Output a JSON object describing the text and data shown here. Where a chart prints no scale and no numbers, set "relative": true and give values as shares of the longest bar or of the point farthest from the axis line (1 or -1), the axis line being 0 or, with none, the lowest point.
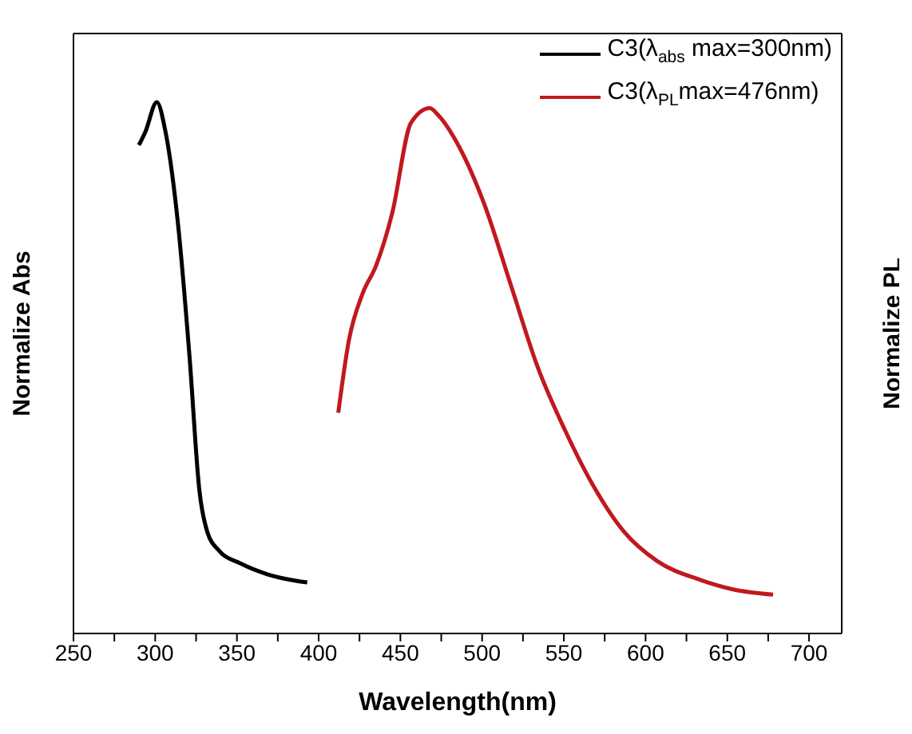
{
  "chart_data": {
    "type": "line",
    "xlabel": "Wavelength(nm)",
    "ylabel": "Normalize Abs",
    "y2label": "Normalize PL",
    "relative": true,
    "legend": "top right",
    "grid": false,
    "marker": "none",
    "line_style": "solid",
    "xlim": [
      250,
      720
    ],
    "xticks": [
      250,
      {
        "value": 275,
        "label": null
      },
      300,
      {
        "value": 325,
        "label": null
      },
      350,
      {
        "value": 375,
        "label": null
      },
      400,
      {
        "value": 425,
        "label": null
      },
      450,
      {
        "value": 475,
        "label": null
      },
      500,
      {
        "value": 525,
        "label": null
      },
      550,
      {
        "value": 575,
        "label": null
      },
      600,
      {
        "value": 625,
        "label": null
      },
      650,
      {
        "value": 675,
        "label": null
      },
      700
    ],
    "series": [
      {
        "name": "C3(λ$_{abs}$ max=300nm)",
        "color": "#000000",
        "axis": "y",
        "x": [
          290,
          294,
          301,
          306,
          314,
          321,
          327,
          332,
          339,
          352,
          369,
          393
        ],
        "values": [
          0.919,
          0.944,
          1.0,
          0.949,
          0.769,
          0.521,
          0.27,
          0.19,
          0.156,
          0.132,
          0.111,
          0.096
        ]
      },
      {
        "name": "C3(λ$_{PL}$max=476nm)",
        "color": "#c0191e",
        "axis": "y2",
        "x": [
          412,
          418.5,
          427,
          435,
          445,
          456.5,
          468,
          473,
          486,
          501,
          518,
          534,
          551,
          567.5,
          587,
          607,
          633.5,
          653.5,
          678
        ],
        "values": [
          0.42,
          0.558,
          0.648,
          0.699,
          0.8,
          0.972,
          1.0,
          0.987,
          0.926,
          0.82,
          0.659,
          0.507,
          0.385,
          0.284,
          0.193,
          0.138,
          0.102,
          0.084,
          0.074
        ]
      }
    ]
  }
}
